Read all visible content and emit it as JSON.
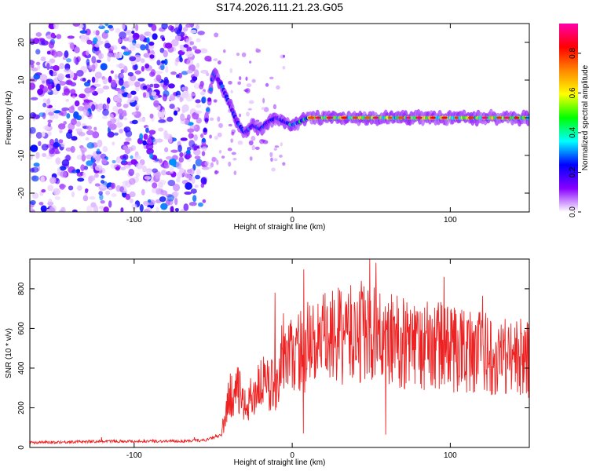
{
  "title": "S174.2026.111.21.23.G05",
  "chart_data": [
    {
      "type": "heatmap",
      "name": "spectrogram",
      "title": "S174.2026.111.21.23.G05",
      "xlabel": "Height of straight line (km)",
      "ylabel": "Frequency (Hz)",
      "xlim": [
        -166,
        150
      ],
      "ylim": [
        -25,
        25
      ],
      "xticks": [
        -100,
        0,
        100
      ],
      "yticks": [
        -20,
        -10,
        0,
        10,
        20
      ],
      "ridge": {
        "x": [
          -56,
          -50,
          -45,
          -40,
          -35,
          -30,
          -25,
          -20,
          -15,
          -10,
          -5,
          0,
          10,
          30,
          60,
          100,
          150
        ],
        "y": [
          -6,
          12,
          9,
          4,
          -1,
          -4,
          -2,
          -3,
          -1,
          0,
          -1,
          -2,
          0,
          0,
          0,
          0,
          0
        ]
      },
      "colorbar": {
        "label": "Normalized spectral amplitude",
        "ticks": [
          0.0,
          0.2,
          0.4,
          0.6,
          0.8
        ],
        "range": [
          0,
          0.95
        ],
        "colors": [
          "#ffffff",
          "#8800ff",
          "#0000ff",
          "#00ffff",
          "#00ff00",
          "#ffff00",
          "#ff8800",
          "#ff0000",
          "#ff00aa"
        ]
      }
    },
    {
      "type": "line",
      "name": "snr",
      "xlabel": "Height of straight line (km)",
      "ylabel": "SNR (10 * v/v)",
      "xlim": [
        -166,
        150
      ],
      "ylim": [
        0,
        950
      ],
      "xticks": [
        -100,
        0,
        100
      ],
      "yticks": [
        0,
        200,
        400,
        600,
        800
      ],
      "color": "#ee2222",
      "series": [
        {
          "name": "SNR",
          "x": [
            -166,
            -150,
            -130,
            -110,
            -90,
            -70,
            -55,
            -45,
            -40,
            -35,
            -30,
            -25,
            -20,
            -15,
            -10,
            -5,
            0,
            10,
            20,
            30,
            40,
            50,
            60,
            70,
            80,
            90,
            100,
            110,
            120,
            130,
            140,
            150
          ],
          "y": [
            25,
            25,
            28,
            30,
            30,
            30,
            35,
            60,
            250,
            300,
            200,
            260,
            330,
            300,
            340,
            400,
            470,
            510,
            540,
            560,
            570,
            560,
            550,
            530,
            500,
            520,
            500,
            490,
            480,
            470,
            460,
            440
          ]
        }
      ],
      "annotations": [
        {
          "x": -11,
          "y": 780
        },
        {
          "x": 49,
          "y": 950
        },
        {
          "x": 96,
          "y": 860
        },
        {
          "x": 59,
          "y": 65
        },
        {
          "x": 7,
          "y": 70
        }
      ]
    }
  ]
}
